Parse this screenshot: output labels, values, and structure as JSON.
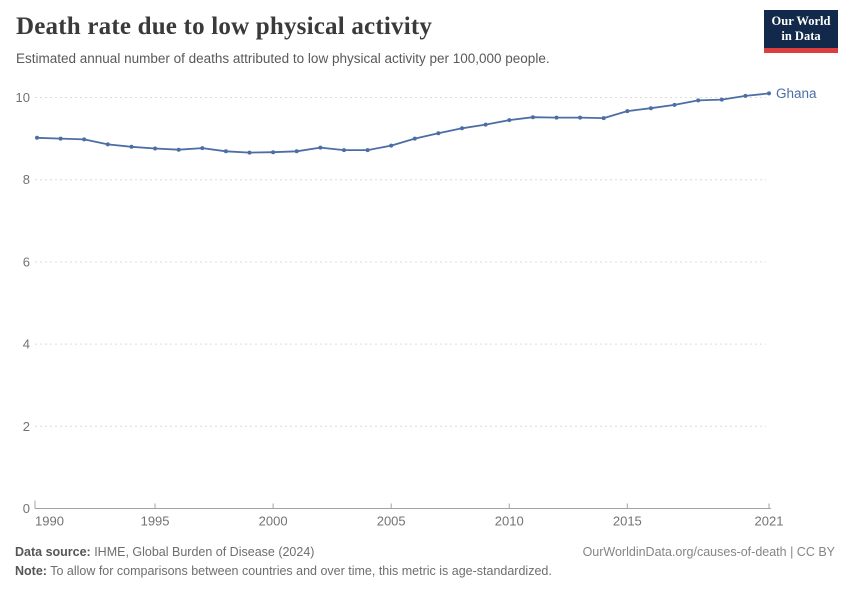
{
  "header": {
    "title": "Death rate due to low physical activity",
    "subtitle": "Estimated annual number of deaths attributed to low physical activity per 100,000 people.",
    "logo_line1": "Our World",
    "logo_line2": "in Data"
  },
  "chart_data": {
    "type": "line",
    "title": "Death rate due to low physical activity",
    "subtitle": "Estimated annual number of deaths attributed to low physical activity per 100,000 people.",
    "x": [
      1990,
      1991,
      1992,
      1993,
      1994,
      1995,
      1996,
      1997,
      1998,
      1999,
      2000,
      2001,
      2002,
      2003,
      2004,
      2005,
      2006,
      2007,
      2008,
      2009,
      2010,
      2011,
      2012,
      2013,
      2014,
      2015,
      2016,
      2017,
      2018,
      2019,
      2020,
      2021
    ],
    "series": [
      {
        "name": "Ghana",
        "color": "#4c6ea5",
        "values": [
          9.02,
          9.0,
          8.98,
          8.86,
          8.8,
          8.76,
          8.73,
          8.77,
          8.69,
          8.66,
          8.67,
          8.69,
          8.78,
          8.72,
          8.72,
          8.83,
          9.0,
          9.13,
          9.25,
          9.34,
          9.45,
          9.52,
          9.51,
          9.51,
          9.5,
          9.67,
          9.74,
          9.82,
          9.93,
          9.95,
          10.04,
          10.1
        ]
      }
    ],
    "xlabel": "",
    "ylabel": "",
    "xlim": [
      1990,
      2021
    ],
    "ylim": [
      0,
      10.5
    ],
    "xticks": [
      1990,
      1995,
      2000,
      2005,
      2010,
      2015,
      2021
    ],
    "yticks": [
      0,
      2,
      4,
      6,
      8,
      10
    ],
    "grid": "horizontal-dashed",
    "legend": "series label at right end of line"
  },
  "footer": {
    "datasource_label": "Data source:",
    "datasource_text": " IHME, Global Burden of Disease (2024)",
    "attribution": "OurWorldinData.org/causes-of-death | CC BY",
    "note_label": "Note:",
    "note_text": " To allow for comparisons between countries and over time, this metric is age-standardized."
  },
  "colors": {
    "accent": "#4c6ea5",
    "grid": "#dcdcdc",
    "axis": "#a3a3a3",
    "tick_label": "#737373",
    "logo_bg": "#12294b",
    "logo_bar": "#dc3d3d"
  }
}
